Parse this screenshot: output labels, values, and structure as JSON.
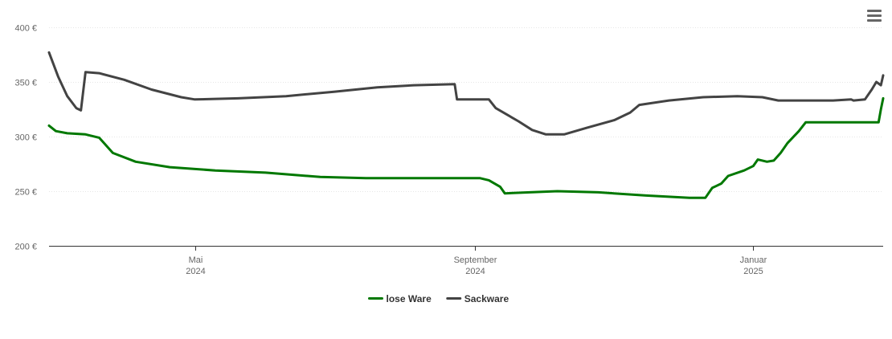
{
  "menu": {
    "icon": "hamburger-menu-icon"
  },
  "chart_data": {
    "type": "line",
    "title": "",
    "xlabel": "",
    "ylabel": "",
    "ylim": [
      200,
      400
    ],
    "y_ticks": [
      200,
      250,
      300,
      350,
      400
    ],
    "y_tick_labels": [
      "200 €",
      "250 €",
      "300 €",
      "350 €",
      "400 €"
    ],
    "xlim": [
      "2024-02-27",
      "2025-02-27"
    ],
    "x_ticks": [
      {
        "date": "2024-05-01",
        "month": "Mai",
        "year": "2024"
      },
      {
        "date": "2024-09-01",
        "month": "September",
        "year": "2024"
      },
      {
        "date": "2025-01-01",
        "month": "Januar",
        "year": "2025"
      }
    ],
    "grid": "horizontal",
    "legend_position": "bottom-center",
    "series": [
      {
        "name": "lose Ware",
        "color": "#007800",
        "points": [
          [
            "2024-02-27",
            310
          ],
          [
            "2024-03-01",
            305
          ],
          [
            "2024-03-06",
            303
          ],
          [
            "2024-03-14",
            302
          ],
          [
            "2024-03-20",
            299
          ],
          [
            "2024-03-26",
            285
          ],
          [
            "2024-04-05",
            277
          ],
          [
            "2024-04-20",
            272
          ],
          [
            "2024-05-10",
            269
          ],
          [
            "2024-06-01",
            267
          ],
          [
            "2024-06-25",
            263
          ],
          [
            "2024-07-15",
            262
          ],
          [
            "2024-08-10",
            262
          ],
          [
            "2024-09-03",
            262
          ],
          [
            "2024-09-07",
            260
          ],
          [
            "2024-09-12",
            254
          ],
          [
            "2024-09-14",
            248
          ],
          [
            "2024-09-25",
            249
          ],
          [
            "2024-10-07",
            250
          ],
          [
            "2024-10-25",
            249
          ],
          [
            "2024-11-15",
            246
          ],
          [
            "2024-12-04",
            244
          ],
          [
            "2024-12-11",
            244
          ],
          [
            "2024-12-14",
            253
          ],
          [
            "2024-12-18",
            257
          ],
          [
            "2024-12-21",
            264
          ],
          [
            "2024-12-28",
            269
          ],
          [
            "2025-01-01",
            273
          ],
          [
            "2025-01-03",
            279
          ],
          [
            "2025-01-07",
            277
          ],
          [
            "2025-01-10",
            278
          ],
          [
            "2025-01-13",
            285
          ],
          [
            "2025-01-16",
            294
          ],
          [
            "2025-01-21",
            305
          ],
          [
            "2025-01-24",
            313
          ],
          [
            "2025-02-01",
            313
          ],
          [
            "2025-02-06",
            313
          ],
          [
            "2025-02-25",
            313
          ],
          [
            "2025-02-26",
            325
          ],
          [
            "2025-02-27",
            335
          ]
        ]
      },
      {
        "name": "Sackware",
        "color": "#434343",
        "points": [
          [
            "2024-02-27",
            377
          ],
          [
            "2024-03-02",
            355
          ],
          [
            "2024-03-06",
            337
          ],
          [
            "2024-03-10",
            326
          ],
          [
            "2024-03-12",
            324
          ],
          [
            "2024-03-14",
            359
          ],
          [
            "2024-03-20",
            358
          ],
          [
            "2024-03-31",
            352
          ],
          [
            "2024-04-12",
            343
          ],
          [
            "2024-04-25",
            336
          ],
          [
            "2024-05-01",
            334
          ],
          [
            "2024-05-20",
            335
          ],
          [
            "2024-06-10",
            337
          ],
          [
            "2024-07-01",
            341
          ],
          [
            "2024-07-20",
            345
          ],
          [
            "2024-08-05",
            347
          ],
          [
            "2024-08-23",
            348
          ],
          [
            "2024-08-24",
            334
          ],
          [
            "2024-09-07",
            334
          ],
          [
            "2024-09-10",
            326
          ],
          [
            "2024-09-20",
            314
          ],
          [
            "2024-09-26",
            306
          ],
          [
            "2024-10-02",
            302
          ],
          [
            "2024-10-10",
            302
          ],
          [
            "2024-10-20",
            308
          ],
          [
            "2024-11-01",
            315
          ],
          [
            "2024-11-08",
            322
          ],
          [
            "2024-11-12",
            329
          ],
          [
            "2024-11-25",
            333
          ],
          [
            "2024-12-10",
            336
          ],
          [
            "2024-12-25",
            337
          ],
          [
            "2025-01-05",
            336
          ],
          [
            "2025-01-12",
            333
          ],
          [
            "2025-01-25",
            333
          ],
          [
            "2025-02-05",
            333
          ],
          [
            "2025-02-13",
            334
          ],
          [
            "2025-02-14",
            333
          ],
          [
            "2025-02-19",
            334
          ],
          [
            "2025-02-22",
            343
          ],
          [
            "2025-02-24",
            350
          ],
          [
            "2025-02-26",
            347
          ],
          [
            "2025-02-27",
            356
          ]
        ]
      }
    ]
  }
}
